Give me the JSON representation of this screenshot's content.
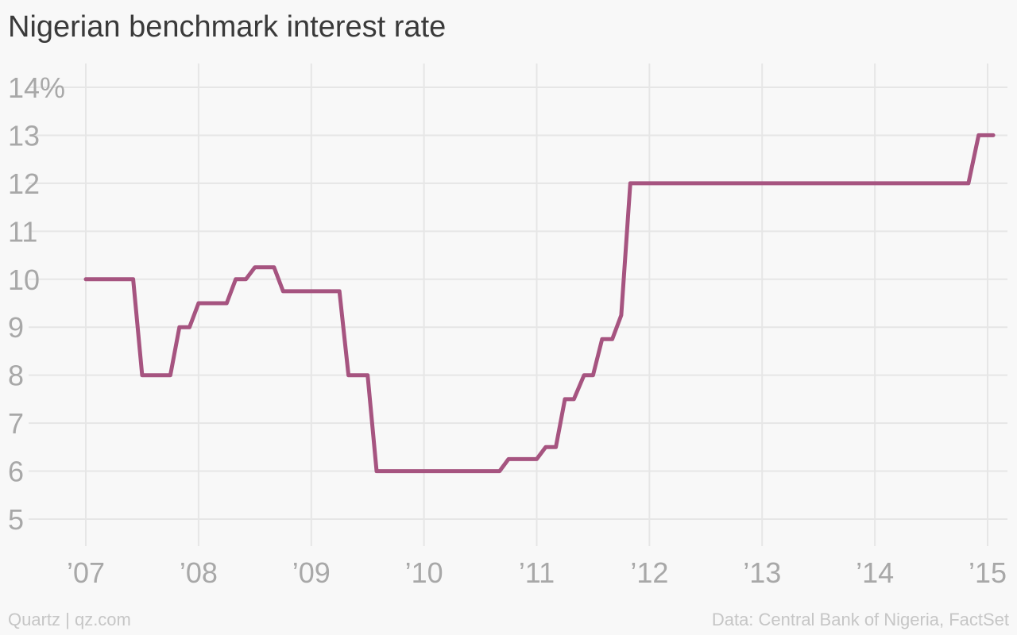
{
  "header": {
    "title": "Nigerian benchmark interest rate"
  },
  "footer": {
    "brand": "Quartz | qz.com",
    "source": "Data: Central Bank of Nigeria, FactSet"
  },
  "colors": {
    "line": "#a65480",
    "grid": "#e6e6e6",
    "tick_text": "#a8a8a8",
    "background": "#f8f8f8"
  },
  "chart_data": {
    "type": "line",
    "title": "Nigerian benchmark interest rate",
    "xlabel": "",
    "ylabel": "",
    "y_unit": "%",
    "xlim": [
      2007.0,
      2015.1
    ],
    "ylim": [
      4.5,
      14.5
    ],
    "grid": true,
    "legend": "none",
    "y_ticks": [
      {
        "value": 14,
        "label": "14%"
      },
      {
        "value": 13,
        "label": "13"
      },
      {
        "value": 12,
        "label": "12"
      },
      {
        "value": 11,
        "label": "11"
      },
      {
        "value": 10,
        "label": "10"
      },
      {
        "value": 9,
        "label": "9"
      },
      {
        "value": 8,
        "label": "8"
      },
      {
        "value": 7,
        "label": "7"
      },
      {
        "value": 6,
        "label": "6"
      },
      {
        "value": 5,
        "label": "5"
      }
    ],
    "x_ticks": [
      {
        "value": 2007,
        "label": "’07"
      },
      {
        "value": 2008,
        "label": "’08"
      },
      {
        "value": 2009,
        "label": "’09"
      },
      {
        "value": 2010,
        "label": "’10"
      },
      {
        "value": 2011,
        "label": "’11"
      },
      {
        "value": 2012,
        "label": "’12"
      },
      {
        "value": 2013,
        "label": "’13"
      },
      {
        "value": 2014,
        "label": "’14"
      },
      {
        "value": 2015,
        "label": "’15"
      }
    ],
    "series": [
      {
        "x": [
          2007.0,
          2007.42,
          2007.5,
          2007.75,
          2007.83,
          2007.92,
          2008.0,
          2008.25,
          2008.33,
          2008.42,
          2008.5,
          2008.67,
          2008.75,
          2009.0,
          2009.25,
          2009.33,
          2009.5,
          2009.58,
          2010.67,
          2010.75,
          2011.0,
          2011.08,
          2011.17,
          2011.25,
          2011.33,
          2011.42,
          2011.5,
          2011.58,
          2011.67,
          2011.75,
          2011.83,
          2012.0,
          2013.0,
          2014.0,
          2014.83,
          2014.92,
          2015.05
        ],
        "values": [
          10.0,
          10.0,
          8.0,
          8.0,
          9.0,
          9.0,
          9.5,
          9.5,
          10.0,
          10.0,
          10.25,
          10.25,
          9.75,
          9.75,
          9.75,
          8.0,
          8.0,
          6.0,
          6.0,
          6.25,
          6.25,
          6.5,
          6.5,
          7.5,
          7.5,
          8.0,
          8.0,
          8.75,
          8.75,
          9.25,
          12.0,
          12.0,
          12.0,
          12.0,
          12.0,
          13.0,
          13.0
        ]
      }
    ]
  }
}
